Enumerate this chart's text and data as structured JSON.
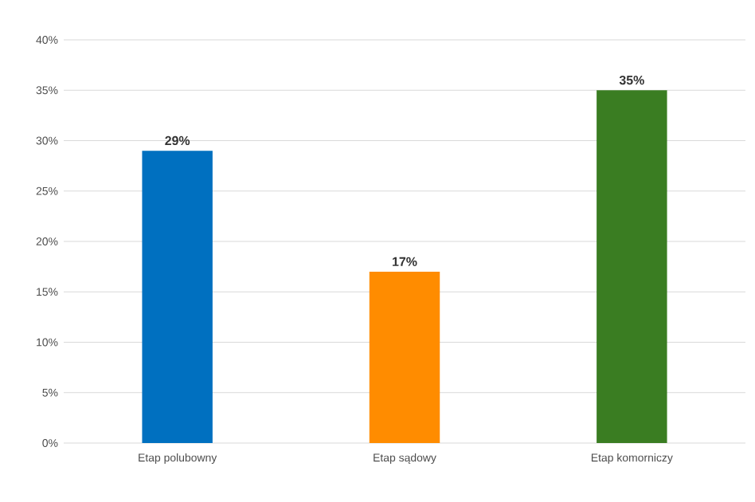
{
  "chart_data": {
    "type": "bar",
    "categories": [
      "Etap polubowny",
      "Etap sądowy",
      "Etap komorniczy"
    ],
    "values": [
      29,
      17,
      35
    ],
    "colors": [
      "#0070c0",
      "#ff8c00",
      "#3a7d22"
    ],
    "value_labels": [
      "29%",
      "17%",
      "35%"
    ],
    "ylim": [
      0,
      40
    ],
    "yticks": [
      {
        "value": 0,
        "label": "0%"
      },
      {
        "value": 5,
        "label": "5%"
      },
      {
        "value": 10,
        "label": "10%"
      },
      {
        "value": 15,
        "label": "15%"
      },
      {
        "value": 20,
        "label": "20%"
      },
      {
        "value": 25,
        "label": "25%"
      },
      {
        "value": 30,
        "label": "30%"
      },
      {
        "value": 35,
        "label": "35%"
      },
      {
        "value": 40,
        "label": "40%"
      }
    ],
    "grid": "y"
  }
}
